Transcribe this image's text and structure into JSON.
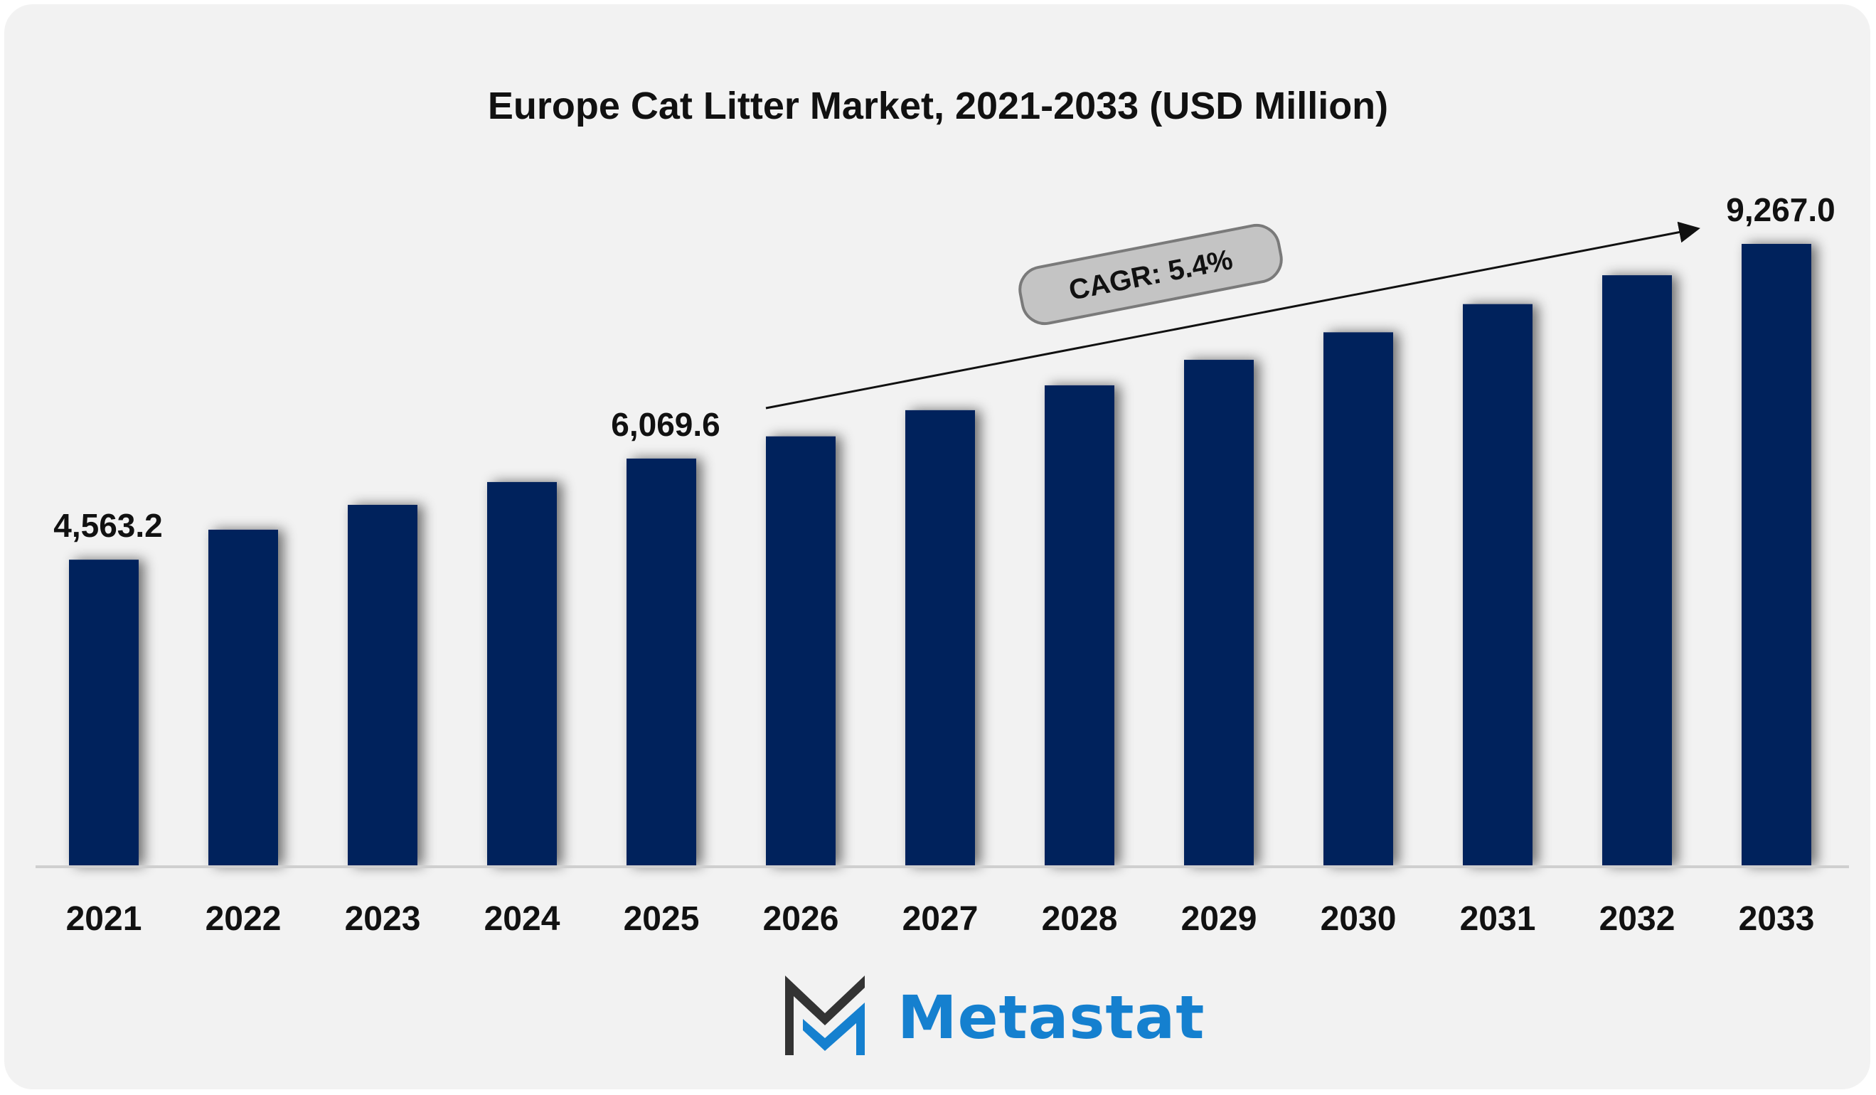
{
  "chart_data": {
    "type": "bar",
    "title": "Europe Cat Litter Market, 2021-2033 (USD Million)",
    "categories": [
      "2021",
      "2022",
      "2023",
      "2024",
      "2025",
      "2026",
      "2027",
      "2028",
      "2029",
      "2030",
      "2031",
      "2032",
      "2033"
    ],
    "values": [
      4563.2,
      5010,
      5380,
      5720,
      6069.6,
      6400,
      6790,
      7160,
      7540,
      7950,
      8370,
      8800,
      9267.0
    ],
    "data_labels": {
      "2021": "4,563.2",
      "2025": "6,069.6",
      "2033": "9,267.0"
    },
    "annotation": "CAGR: 5.4%",
    "xlabel": "",
    "ylabel": "",
    "ylim": [
      0,
      9267.0
    ],
    "grid": false,
    "bar_color": "#00205b"
  },
  "branding": {
    "logo_text": "Metastat",
    "logo_color": "#1580cf",
    "logo_dark": "#333333"
  }
}
